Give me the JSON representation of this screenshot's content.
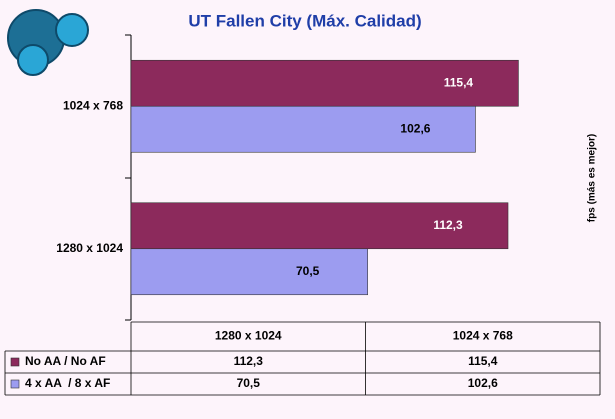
{
  "chart_data": {
    "type": "bar",
    "orientation": "horizontal",
    "title": "UT Fallen City (Máx. Calidad)",
    "y_label": "fps (más es mejor)",
    "categories": [
      "1280 x 1024",
      "1024 x 768"
    ],
    "series": [
      {
        "name": "No AA / No AF",
        "color": "#8c2a5c",
        "values": [
          112.3,
          115.4
        ],
        "value_labels": [
          "112,3",
          "115,4"
        ]
      },
      {
        "name": "4 x AA  / 8 x AF",
        "color": "#9c9cf0",
        "values": [
          70.5,
          102.6
        ],
        "value_labels": [
          "70,5",
          "102,6"
        ]
      }
    ],
    "xlim": [
      0,
      140
    ]
  }
}
